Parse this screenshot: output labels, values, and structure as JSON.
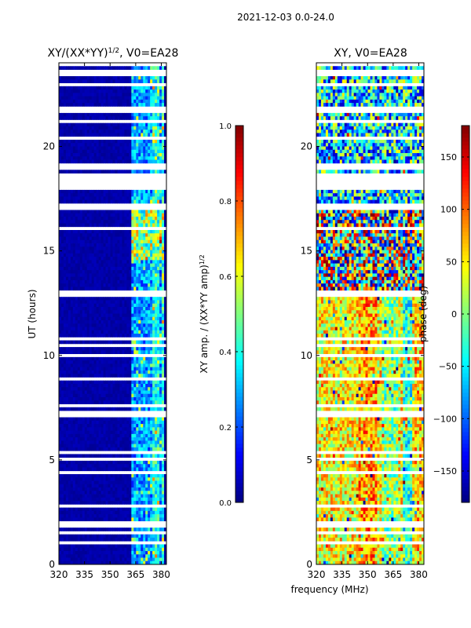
{
  "suptitle": "2021-12-03 0.0-24.0",
  "shared_xlabel": "frequency (MHz)",
  "chart_data": [
    {
      "type": "heatmap",
      "title_main": "XY/(XX*YY)",
      "title_exp": "1/2",
      "title_suffix": ", V0=EA28",
      "xlabel": "",
      "ylabel": "UT (hours)",
      "xlim": [
        320,
        383
      ],
      "ylim": [
        0,
        24
      ],
      "xticks": [
        320,
        335,
        350,
        365,
        380
      ],
      "yticks": [
        0,
        5,
        10,
        15,
        20
      ],
      "colorbar": {
        "label_main": "XY amp. / (XX*YY amp)",
        "label_exp": "1/2",
        "range": [
          0.0,
          1.0
        ],
        "ticks": [
          "0.0",
          "0.2",
          "0.4",
          "0.6",
          "0.8",
          "1.0"
        ]
      }
    },
    {
      "type": "heatmap",
      "title_main": "XY, V0=EA28",
      "xlabel": "",
      "ylabel": "",
      "xlim": [
        320,
        383
      ],
      "ylim": [
        0,
        24
      ],
      "xticks": [
        320,
        335,
        350,
        365,
        380
      ],
      "yticks": [
        0,
        5,
        10,
        15,
        20
      ],
      "colorbar": {
        "label_main": "phase (deg)",
        "range": [
          -180,
          180
        ],
        "ticks": [
          "−150",
          "−100",
          "−50",
          "0",
          "50",
          "100",
          "150"
        ]
      }
    }
  ]
}
